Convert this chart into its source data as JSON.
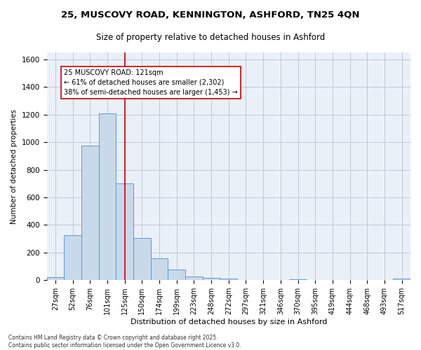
{
  "title_line1": "25, MUSCOVY ROAD, KENNINGTON, ASHFORD, TN25 4QN",
  "title_line2": "Size of property relative to detached houses in Ashford",
  "xlabel": "Distribution of detached houses by size in Ashford",
  "ylabel": "Number of detached properties",
  "bar_labels": [
    "27sqm",
    "52sqm",
    "76sqm",
    "101sqm",
    "125sqm",
    "150sqm",
    "174sqm",
    "199sqm",
    "223sqm",
    "248sqm",
    "272sqm",
    "297sqm",
    "321sqm",
    "346sqm",
    "370sqm",
    "395sqm",
    "419sqm",
    "444sqm",
    "468sqm",
    "493sqm",
    "517sqm"
  ],
  "bar_values": [
    20,
    325,
    975,
    1210,
    700,
    305,
    160,
    75,
    25,
    15,
    10,
    0,
    0,
    0,
    8,
    0,
    0,
    0,
    0,
    0,
    10
  ],
  "bar_color": "#c8d9ea",
  "bar_edge_color": "#5b9bd5",
  "vline_color": "#cc0000",
  "annotation_text": "25 MUSCOVY ROAD: 121sqm\n← 61% of detached houses are smaller (2,302)\n38% of semi-detached houses are larger (1,453) →",
  "annotation_box_color": "#ffffff",
  "annotation_box_edge": "#cc0000",
  "ylim": [
    0,
    1650
  ],
  "yticks": [
    0,
    200,
    400,
    600,
    800,
    1000,
    1200,
    1400,
    1600
  ],
  "grid_color": "#c0c8d8",
  "background_color": "#eaf0f8",
  "footer_line1": "Contains HM Land Registry data © Crown copyright and database right 2025.",
  "footer_line2": "Contains public sector information licensed under the Open Government Licence v3.0."
}
